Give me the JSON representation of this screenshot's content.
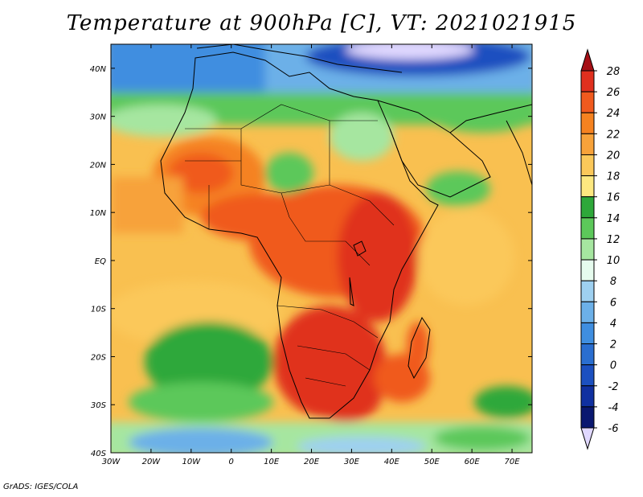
{
  "title": "Temperature at 900hPa [C], VT: 2021021915",
  "footer": "GrADS: IGES/COLA",
  "map": {
    "lon_range": [
      -30,
      75
    ],
    "lat_range": [
      -40,
      45
    ],
    "lon_ticks": [
      {
        "value": -30,
        "label": "30W"
      },
      {
        "value": -20,
        "label": "20W"
      },
      {
        "value": -10,
        "label": "10W"
      },
      {
        "value": 0,
        "label": "0"
      },
      {
        "value": 10,
        "label": "10E"
      },
      {
        "value": 20,
        "label": "20E"
      },
      {
        "value": 30,
        "label": "30E"
      },
      {
        "value": 40,
        "label": "40E"
      },
      {
        "value": 50,
        "label": "50E"
      },
      {
        "value": 60,
        "label": "60E"
      },
      {
        "value": 70,
        "label": "70E"
      }
    ],
    "lat_ticks": [
      {
        "value": 40,
        "label": "40N"
      },
      {
        "value": 30,
        "label": "30N"
      },
      {
        "value": 20,
        "label": "20N"
      },
      {
        "value": 10,
        "label": "10N"
      },
      {
        "value": 0,
        "label": "EQ"
      },
      {
        "value": -10,
        "label": "10S"
      },
      {
        "value": -20,
        "label": "20S"
      },
      {
        "value": -30,
        "label": "30S"
      },
      {
        "value": -40,
        "label": "40S"
      }
    ]
  },
  "colorbar": {
    "levels": [
      "28",
      "26",
      "24",
      "22",
      "20",
      "18",
      "16",
      "14",
      "12",
      "10",
      "8",
      "6",
      "4",
      "2",
      "0",
      "-2",
      "-4",
      "-6"
    ],
    "colors": [
      "#a50f15",
      "#e0301e",
      "#f05a1e",
      "#f58220",
      "#f7a23a",
      "#fbc85a",
      "#fde880",
      "#2ea83a",
      "#5cc85a",
      "#a6e6a0",
      "#e6fbee",
      "#9ed0f0",
      "#6cb0e8",
      "#3f8ee0",
      "#2a6ed0",
      "#1c50c0",
      "#1030a0",
      "#0a1870",
      "#e0d8ff"
    ]
  }
}
